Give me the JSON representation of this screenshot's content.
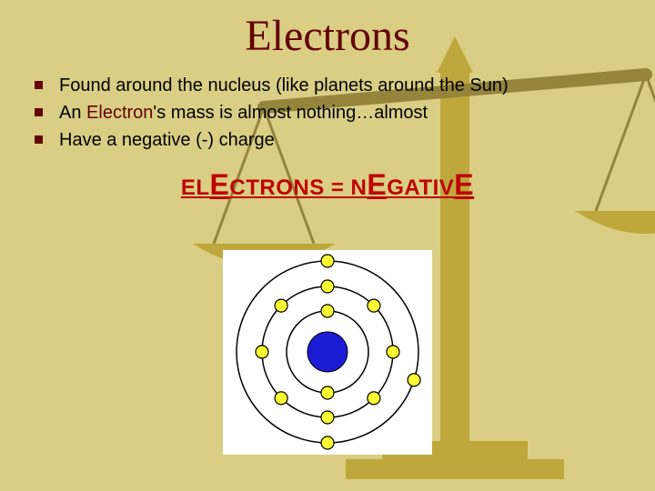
{
  "title": "Electrons",
  "bullets": [
    {
      "pre": "Found around the nucleus (like planets around the Sun)",
      "highlight": "",
      "post": ""
    },
    {
      "pre": "An ",
      "highlight": "Electron",
      "post": "'s mass is almost nothing…almost"
    },
    {
      "pre": "Have a negative (-) charge",
      "highlight": "",
      "post": ""
    }
  ],
  "mnemonic": {
    "p1": "E",
    "p2": "L",
    "p3": "E",
    "p4": "CTRONS = N",
    "p5": "E",
    "p6": "GATIV",
    "p7": "E"
  },
  "atom": {
    "background": "#ffffff",
    "nucleus_color": "#1b1bd6",
    "nucleus_radius": 22,
    "ring_radii": [
      45,
      72,
      100
    ],
    "ring_stroke": "#000000",
    "electron_fill": "#ffff33",
    "electron_stroke": "#000000",
    "electron_radius": 7,
    "electrons": [
      {
        "r": 45,
        "a": 90
      },
      {
        "r": 45,
        "a": 270
      },
      {
        "r": 72,
        "a": 0
      },
      {
        "r": 72,
        "a": 45
      },
      {
        "r": 72,
        "a": 90
      },
      {
        "r": 72,
        "a": 135
      },
      {
        "r": 72,
        "a": 180
      },
      {
        "r": 72,
        "a": 225
      },
      {
        "r": 72,
        "a": 270
      },
      {
        "r": 72,
        "a": 315
      },
      {
        "r": 100,
        "a": 90
      },
      {
        "r": 100,
        "a": 270
      },
      {
        "r": 100,
        "a": 342
      }
    ]
  },
  "scale": {
    "column_fill": "#a88a00",
    "column_shadow": "#5c4a00",
    "base_fill": "#a88a00",
    "beam_fill": "#5c4a00",
    "pan_fill": "#a88a00",
    "chain_stroke": "#5c4a00"
  }
}
